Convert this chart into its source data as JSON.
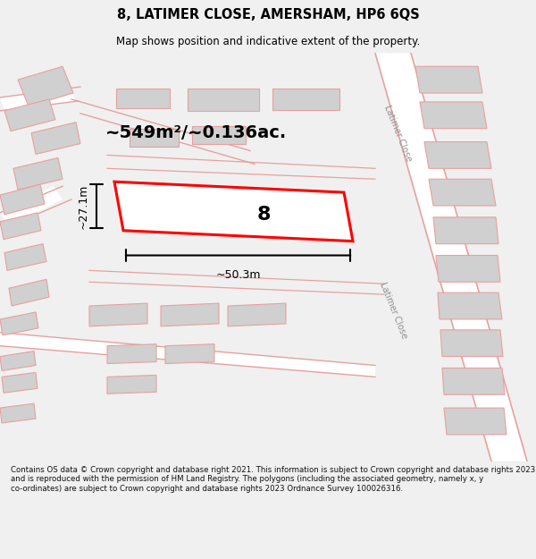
{
  "title": "8, LATIMER CLOSE, AMERSHAM, HP6 6QS",
  "subtitle": "Map shows position and indicative extent of the property.",
  "area_label": "~549m²/~0.136ac.",
  "property_number": "8",
  "dim_width": "~50.3m",
  "dim_height": "~27.1m",
  "street_label": "Latimer Close",
  "footer": "Contains OS data © Crown copyright and database right 2021. This information is subject to Crown copyright and database rights 2023 and is reproduced with the permission of HM Land Registry. The polygons (including the associated geometry, namely x, y co-ordinates) are subject to Crown copyright and database rights 2023 Ordnance Survey 100026316.",
  "bg_color": "#f0f0f0",
  "map_bg": "#ffffff",
  "building_color": "#d0d0d0",
  "road_color": "#ffffff",
  "outline_color": "#e8a0a0",
  "highlight_color": "#ff0000",
  "title_color": "#000000"
}
